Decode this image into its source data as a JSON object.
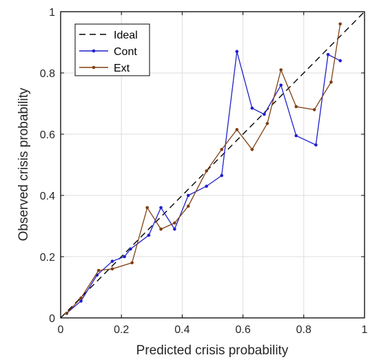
{
  "chart_data": {
    "type": "line",
    "xlabel": "Predicted crisis probability",
    "ylabel": "Observed crisis probability",
    "xlim": [
      0,
      1
    ],
    "ylim": [
      0,
      1
    ],
    "xticks": [
      0,
      0.2,
      0.4,
      0.6,
      0.8,
      1
    ],
    "yticks": [
      0,
      0.2,
      0.4,
      0.6,
      0.8,
      1
    ],
    "xtick_labels": [
      "0",
      "0.2",
      "0.4",
      "0.6",
      "0.8",
      "1"
    ],
    "ytick_labels": [
      "0",
      "0.2",
      "0.4",
      "0.6",
      "0.8",
      "1"
    ],
    "grid": true,
    "legend_position": "top-left",
    "series": [
      {
        "name": "Ideal",
        "color": "#000000",
        "style": "dashed",
        "x": [
          0,
          1
        ],
        "y": [
          0,
          1
        ]
      },
      {
        "name": "Cont",
        "color": "#1f1fcc",
        "style": "solid-markers",
        "x": [
          0.02,
          0.067,
          0.12,
          0.17,
          0.21,
          0.23,
          0.29,
          0.33,
          0.375,
          0.42,
          0.48,
          0.53,
          0.58,
          0.63,
          0.67,
          0.725,
          0.775,
          0.84,
          0.88,
          0.92
        ],
        "y": [
          0.015,
          0.055,
          0.14,
          0.185,
          0.2,
          0.225,
          0.27,
          0.36,
          0.29,
          0.4,
          0.43,
          0.465,
          0.87,
          0.685,
          0.665,
          0.76,
          0.595,
          0.565,
          0.86,
          0.84
        ]
      },
      {
        "name": "Ext",
        "color": "#7f3f12",
        "style": "solid-markers",
        "x": [
          0.02,
          0.067,
          0.125,
          0.17,
          0.235,
          0.285,
          0.33,
          0.375,
          0.42,
          0.48,
          0.53,
          0.58,
          0.63,
          0.68,
          0.725,
          0.775,
          0.835,
          0.89,
          0.92
        ],
        "y": [
          0.015,
          0.065,
          0.155,
          0.16,
          0.18,
          0.36,
          0.29,
          0.31,
          0.365,
          0.48,
          0.55,
          0.615,
          0.55,
          0.635,
          0.81,
          0.69,
          0.68,
          0.77,
          0.96
        ]
      }
    ]
  }
}
